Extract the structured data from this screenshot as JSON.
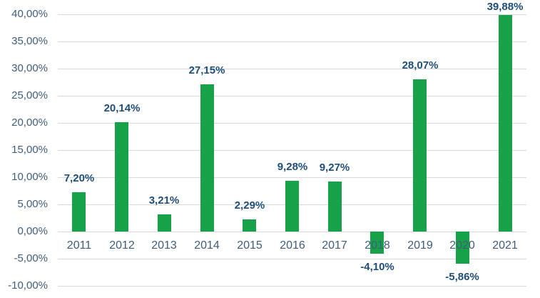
{
  "chart_data": {
    "type": "bar",
    "title": "",
    "xlabel": "",
    "ylabel": "",
    "categories": [
      "2011",
      "2012",
      "2013",
      "2014",
      "2015",
      "2016",
      "2017",
      "2018",
      "2019",
      "2020",
      "2021"
    ],
    "values": [
      7.2,
      20.14,
      3.21,
      27.15,
      2.29,
      9.28,
      9.27,
      -4.1,
      28.07,
      -5.86,
      39.88
    ],
    "value_labels": [
      "7,20%",
      "20,14%",
      "3,21%",
      "27,15%",
      "2,29%",
      "9,28%",
      "9,27%",
      "-4,10%",
      "28,07%",
      "-5,86%",
      "39,88%"
    ],
    "y_ticks": [
      {
        "value": 40,
        "label": "40,00%"
      },
      {
        "value": 35,
        "label": "35,00%"
      },
      {
        "value": 30,
        "label": "30,00%"
      },
      {
        "value": 25,
        "label": "25,00%"
      },
      {
        "value": 20,
        "label": "20,00%"
      },
      {
        "value": 15,
        "label": "15,00%"
      },
      {
        "value": 10,
        "label": "10,00%"
      },
      {
        "value": 5,
        "label": "5,00%"
      },
      {
        "value": 0,
        "label": "0,00%"
      },
      {
        "value": -5,
        "label": "-5,00%"
      },
      {
        "value": -10,
        "label": "-10,00%"
      }
    ],
    "ylim": [
      -10,
      40
    ],
    "grid": true,
    "legend_position": "none",
    "colors": {
      "bar": "#17A24A",
      "value_label": "#1F4E79",
      "axis_label": "#3F5D7B",
      "gridline": "#D9D9D9",
      "background": "#FFFFFF"
    }
  }
}
